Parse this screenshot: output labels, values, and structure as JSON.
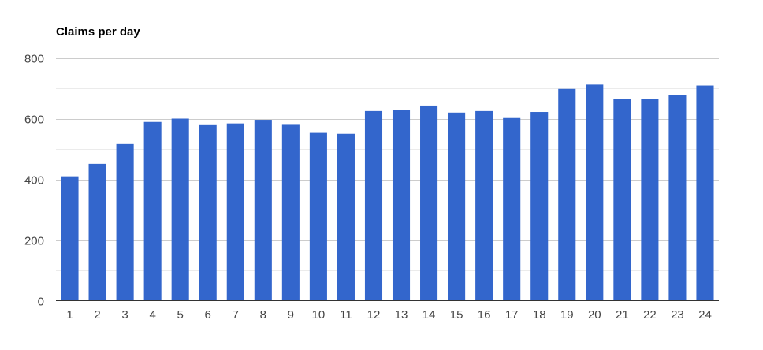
{
  "chart_data": {
    "type": "bar",
    "title": "Claims per day",
    "xlabel": "",
    "ylabel": "",
    "categories": [
      "1",
      "2",
      "3",
      "4",
      "5",
      "6",
      "7",
      "8",
      "9",
      "10",
      "11",
      "12",
      "13",
      "14",
      "15",
      "16",
      "17",
      "18",
      "19",
      "20",
      "21",
      "22",
      "23",
      "24"
    ],
    "values": [
      410,
      451,
      516,
      589,
      600,
      581,
      584,
      596,
      582,
      553,
      550,
      625,
      628,
      643,
      620,
      625,
      602,
      622,
      698,
      712,
      666,
      664,
      678,
      709
    ],
    "ylim": [
      0,
      800
    ],
    "yticks": [
      0,
      200,
      400,
      600,
      800
    ],
    "grid": true,
    "legend": "none",
    "colors": {
      "bar": "#3366cc",
      "major_grid": "#cccccc",
      "minor_grid": "#ebebeb",
      "axis": "#333333",
      "tick_label": "#444444"
    }
  }
}
